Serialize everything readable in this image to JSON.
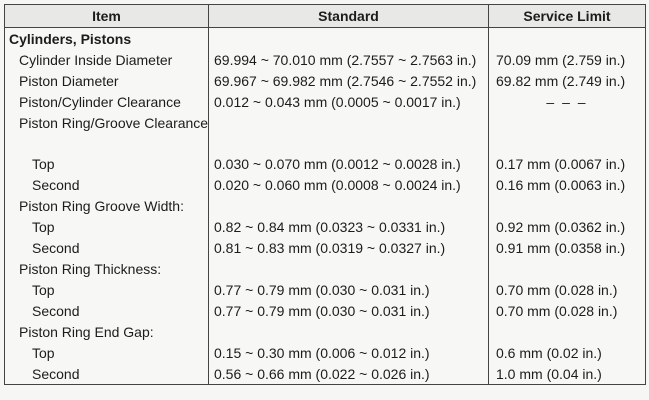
{
  "headers": {
    "item": "Item",
    "standard": "Standard",
    "service_limit": "Service Limit"
  },
  "section": "Cylinders, Pistons",
  "rows": {
    "cyl_dia": {
      "item": "Cylinder Inside Diameter",
      "standard": "69.994 ~ 70.010 mm (2.7557 ~ 2.7563 in.)",
      "limit": "70.09 mm (2.759 in.)"
    },
    "pis_dia": {
      "item": "Piston Diameter",
      "standard": "69.967 ~ 69.982 mm (2.7546 ~ 2.7552 in.)",
      "limit": "69.82 mm (2.749 in.)"
    },
    "pis_clr": {
      "item": "Piston/Cylinder Clearance",
      "standard": "0.012 ~ 0.043 mm (0.0005 ~ 0.0017 in.)",
      "limit": "– – –"
    },
    "groove_clr": {
      "item": "Piston Ring/Groove Clearance:"
    },
    "gc_top": {
      "item": "Top",
      "standard": "0.030 ~ 0.070 mm (0.0012 ~ 0.0028 in.)",
      "limit": "0.17 mm (0.0067 in.)"
    },
    "gc_second": {
      "item": "Second",
      "standard": "0.020 ~ 0.060 mm (0.0008 ~ 0.0024 in.)",
      "limit": "0.16 mm (0.0063 in.)"
    },
    "groove_w": {
      "item": "Piston Ring Groove Width:"
    },
    "gw_top": {
      "item": "Top",
      "standard": "0.82 ~ 0.84 mm (0.0323 ~ 0.0331 in.)",
      "limit": "0.92 mm (0.0362 in.)"
    },
    "gw_second": {
      "item": "Second",
      "standard": "0.81 ~ 0.83 mm (0.0319 ~ 0.0327 in.)",
      "limit": "0.91 mm (0.0358 in.)"
    },
    "ring_thk": {
      "item": "Piston Ring Thickness:"
    },
    "rt_top": {
      "item": "Top",
      "standard": "0.77 ~ 0.79 mm (0.030 ~ 0.031 in.)",
      "limit": "0.70 mm (0.028 in.)"
    },
    "rt_second": {
      "item": "Second",
      "standard": "0.77 ~ 0.79 mm (0.030 ~ 0.031 in.)",
      "limit": "0.70 mm (0.028 in.)"
    },
    "end_gap": {
      "item": "Piston Ring End Gap:"
    },
    "eg_top": {
      "item": "Top",
      "standard": "0.15 ~ 0.30 mm (0.006 ~ 0.012 in.)",
      "limit": "0.6 mm (0.02 in.)"
    },
    "eg_second": {
      "item": "Second",
      "standard": "0.56 ~ 0.66 mm (0.022 ~ 0.026 in.)",
      "limit": "1.0 mm (0.04 in.)"
    }
  }
}
